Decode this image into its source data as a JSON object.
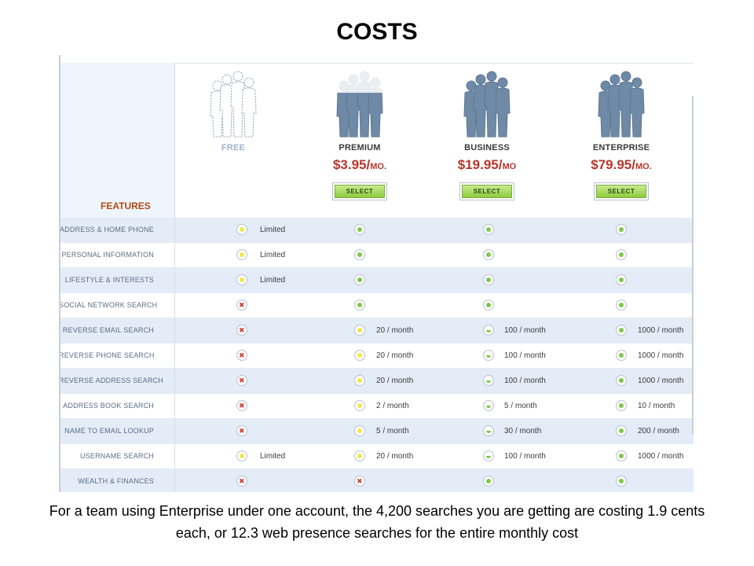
{
  "slide": {
    "title": "COSTS",
    "caption": "For a team using Enterprise under one account, the 4,200 searches you are getting are costing 1.9 cents each, or 12.3 web presence searches for the entire monthly cost"
  },
  "table": {
    "features_label": "FEATURES",
    "select_label": "SELECT",
    "plans": [
      {
        "name": "FREE",
        "price": "",
        "price_suffix": "",
        "figure_style": "outline"
      },
      {
        "name": "PREMIUM",
        "price": "$3.95/",
        "price_suffix": "MO.",
        "figure_style": "half"
      },
      {
        "name": "BUSINESS",
        "price": "$19.95/",
        "price_suffix": "MO",
        "figure_style": "solid"
      },
      {
        "name": "ENTERPRISE",
        "price": "$79.95/",
        "price_suffix": "MO.",
        "figure_style": "solid"
      }
    ],
    "rows": [
      {
        "feature": "ADDRESS & HOME PHONE",
        "cells": [
          {
            "icon": "yellow",
            "text": "Limited"
          },
          {
            "icon": "green",
            "text": ""
          },
          {
            "icon": "green",
            "text": ""
          },
          {
            "icon": "green",
            "text": ""
          }
        ]
      },
      {
        "feature": "PERSONAL INFORMATION",
        "cells": [
          {
            "icon": "yellow",
            "text": "Limited"
          },
          {
            "icon": "green",
            "text": ""
          },
          {
            "icon": "green",
            "text": ""
          },
          {
            "icon": "green",
            "text": ""
          }
        ]
      },
      {
        "feature": "LIFESTYLE & INTERESTS",
        "cells": [
          {
            "icon": "yellow",
            "text": "Limited"
          },
          {
            "icon": "green",
            "text": ""
          },
          {
            "icon": "green",
            "text": ""
          },
          {
            "icon": "green",
            "text": ""
          }
        ]
      },
      {
        "feature": "SOCIAL NETWORK SEARCH",
        "cells": [
          {
            "icon": "x",
            "text": ""
          },
          {
            "icon": "green",
            "text": ""
          },
          {
            "icon": "green",
            "text": ""
          },
          {
            "icon": "green",
            "text": ""
          }
        ]
      },
      {
        "feature": "REVERSE EMAIL SEARCH",
        "cells": [
          {
            "icon": "x",
            "text": ""
          },
          {
            "icon": "yellow",
            "text": "20 / month"
          },
          {
            "icon": "half",
            "text": "100 / month"
          },
          {
            "icon": "green",
            "text": "1000 / month"
          }
        ]
      },
      {
        "feature": "REVERSE PHONE SEARCH",
        "cells": [
          {
            "icon": "x",
            "text": ""
          },
          {
            "icon": "yellow",
            "text": "20 / month"
          },
          {
            "icon": "half",
            "text": "100 / month"
          },
          {
            "icon": "green",
            "text": "1000 / month"
          }
        ]
      },
      {
        "feature": "REVERSE ADDRESS SEARCH",
        "cells": [
          {
            "icon": "x",
            "text": ""
          },
          {
            "icon": "yellow",
            "text": "20 / month"
          },
          {
            "icon": "half",
            "text": "100 / month"
          },
          {
            "icon": "green",
            "text": "1000 / month"
          }
        ]
      },
      {
        "feature": "ADDRESS BOOK SEARCH",
        "cells": [
          {
            "icon": "x",
            "text": ""
          },
          {
            "icon": "yellow",
            "text": "2 / month"
          },
          {
            "icon": "half",
            "text": "5 / month"
          },
          {
            "icon": "green",
            "text": "10 / month"
          }
        ]
      },
      {
        "feature": "NAME TO EMAIL LOOKUP",
        "cells": [
          {
            "icon": "x",
            "text": ""
          },
          {
            "icon": "yellow",
            "text": "5 / month"
          },
          {
            "icon": "half",
            "text": "30 / month"
          },
          {
            "icon": "green",
            "text": "200 / month"
          }
        ]
      },
      {
        "feature": "USERNAME SEARCH",
        "cells": [
          {
            "icon": "yellow",
            "text": "Limited"
          },
          {
            "icon": "yellow",
            "text": "20 / month"
          },
          {
            "icon": "half",
            "text": "100 / month"
          },
          {
            "icon": "green",
            "text": "1000 / month"
          }
        ]
      },
      {
        "feature": "WEALTH & FINANCES",
        "cells": [
          {
            "icon": "x",
            "text": ""
          },
          {
            "icon": "x",
            "text": ""
          },
          {
            "icon": "green",
            "text": ""
          },
          {
            "icon": "green",
            "text": ""
          }
        ]
      }
    ]
  },
  "colors": {
    "accent_price": "#b8352a",
    "features_label": "#b04c14",
    "row_shade": "#e3ecf7",
    "status_green": "#7ec84a",
    "status_yellow": "#f1e84a",
    "status_x": "#d0453b"
  },
  "icons": {
    "figures": "people-group-icon",
    "green": "green-dot-icon",
    "yellow": "yellow-dot-icon",
    "half": "half-dot-icon",
    "x": "x-mark-icon"
  }
}
